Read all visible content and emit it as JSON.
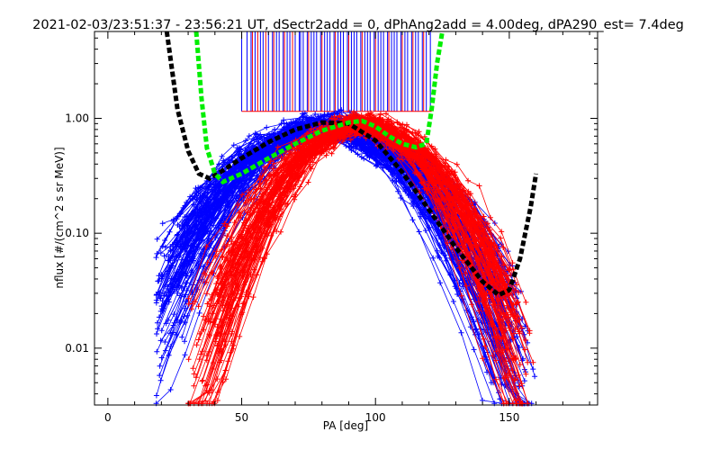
{
  "chart_data": {
    "type": "line",
    "title": "2021-02-03/23:51:37 - 23:56:21 UT, dSectr2add = 0, dPhAng2add = 4.00deg, dPA290_est=   7.4deg",
    "xlabel": "PA [deg]",
    "ylabel": "nflux [#/(cm^2 s sr MeV)]",
    "xlim": [
      -5,
      183
    ],
    "ylim": [
      0.0032,
      5.7
    ],
    "yscale": "log",
    "x_ticks": [
      0,
      50,
      100,
      150
    ],
    "x_tick_labels": [
      "0",
      "50",
      "100",
      "150"
    ],
    "y_ticks": [
      0.01,
      0.1,
      1.0
    ],
    "y_tick_labels": [
      "0.01",
      "0.10",
      "1.00"
    ],
    "grid": false,
    "legend": "none",
    "colors": {
      "blue_series": "#0000ff",
      "red_series": "#ff0000",
      "black_fit": "#000000",
      "green_fit": "#00ee00"
    },
    "series": [
      {
        "color": "#000000",
        "style": "thick-dashed",
        "x": [
          22,
          26,
          30,
          34,
          38,
          42,
          50,
          60,
          70,
          80,
          90,
          100,
          110,
          120,
          130,
          140,
          146,
          150,
          154,
          158,
          160
        ],
        "y": [
          5.7,
          1.2,
          0.52,
          0.33,
          0.3,
          0.34,
          0.45,
          0.62,
          0.8,
          0.92,
          0.9,
          0.64,
          0.34,
          0.16,
          0.075,
          0.038,
          0.029,
          0.032,
          0.06,
          0.17,
          0.33
        ]
      },
      {
        "color": "#00ee00",
        "style": "thick-dashed",
        "x": [
          33,
          35,
          37,
          40,
          43,
          50,
          60,
          70,
          80,
          90,
          95,
          100,
          105,
          110,
          115,
          119,
          121,
          123,
          125
        ],
        "y": [
          5.7,
          1.5,
          0.55,
          0.33,
          0.28,
          0.33,
          0.45,
          0.6,
          0.78,
          0.92,
          0.95,
          0.85,
          0.7,
          0.6,
          0.56,
          0.6,
          1.2,
          3.0,
          5.7
        ]
      }
    ],
    "hline_markers": {
      "y_range": [
        1.15,
        5.7
      ],
      "x_blue": [
        50,
        52,
        53.5,
        55,
        57,
        58,
        60,
        61.5,
        63,
        64,
        65.5,
        67,
        68,
        70,
        71.5,
        72,
        73,
        74.5,
        76,
        77,
        78,
        79.5,
        81,
        82,
        83,
        84.5,
        86,
        87,
        88,
        89.5,
        91,
        92,
        93,
        94.5,
        96,
        97,
        98,
        99.5,
        101,
        102,
        103,
        104.5,
        106,
        107,
        108,
        109.5,
        111,
        112,
        113.5,
        115,
        116,
        117.5,
        119,
        120.5
      ],
      "x_red": [
        54,
        56,
        59,
        62,
        66,
        69,
        75,
        80,
        85,
        90,
        95,
        100,
        105,
        110,
        114,
        118
      ]
    }
  }
}
